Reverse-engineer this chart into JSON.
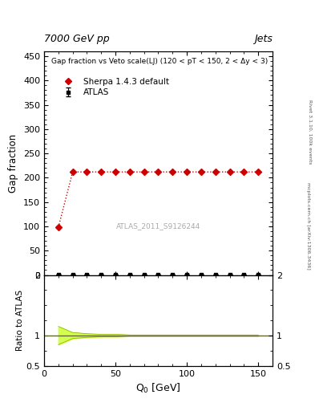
{
  "title_left": "7000 GeV pp",
  "title_right": "Jets",
  "plot_title": "Gap fraction vs Veto scale(LJ) (120 < pT < 150, 2 < Δy < 3)",
  "xlabel": "Q$_0$ [GeV]",
  "ylabel_main": "Gap fraction",
  "ylabel_ratio": "Ratio to ATLAS",
  "watermark": "ATLAS_2011_S9126244",
  "right_label": "Rivet 3.1.10, 100k events",
  "right_label2": "mcplots.cern.ch [arXiv:1306.3436]",
  "xlim": [
    0,
    160
  ],
  "ylim_main": [
    0,
    460
  ],
  "ylim_ratio": [
    0.5,
    2.0
  ],
  "atlas_x": [
    10,
    20,
    30,
    40,
    50,
    60,
    70,
    80,
    90,
    100,
    110,
    120,
    130,
    140,
    150
  ],
  "atlas_y": [
    1,
    1,
    1,
    1,
    1,
    1,
    1,
    1,
    1,
    1,
    1,
    1,
    1,
    1,
    1
  ],
  "atlas_yerr": [
    0.5,
    0.3,
    0.3,
    0.2,
    0.2,
    0.2,
    0.2,
    0.2,
    0.2,
    0.2,
    0.2,
    0.2,
    0.2,
    0.2,
    0.3
  ],
  "sherpa_x": [
    10,
    20,
    30,
    40,
    50,
    60,
    70,
    80,
    90,
    100,
    110,
    120,
    130,
    140,
    150
  ],
  "sherpa_y": [
    98,
    212,
    212,
    212,
    212,
    212,
    212,
    212,
    212,
    212,
    212,
    212,
    212,
    212,
    212
  ],
  "ratio_x": [
    10,
    20,
    30,
    40,
    50,
    60,
    70,
    80,
    90,
    100,
    110,
    120,
    130,
    140,
    150
  ],
  "ratio_y": [
    1.0,
    1.0,
    1.0,
    1.0,
    1.0,
    1.0,
    1.0,
    1.0,
    1.0,
    1.0,
    1.0,
    1.0,
    1.0,
    1.0,
    1.0
  ],
  "ratio_band_upper": [
    1.15,
    1.05,
    1.03,
    1.02,
    1.02,
    1.01,
    1.01,
    1.01,
    1.01,
    1.01,
    1.01,
    1.01,
    1.01,
    1.01,
    1.01
  ],
  "ratio_band_lower": [
    0.85,
    0.95,
    0.97,
    0.98,
    0.98,
    0.99,
    0.99,
    0.99,
    0.99,
    0.99,
    0.99,
    0.99,
    0.99,
    0.99,
    0.99
  ],
  "atlas_color": "#000000",
  "sherpa_color": "#cc0000",
  "ratio_line_color": "#666633",
  "band_fill_color": "#ccff33",
  "band_edge_color": "#88aa00",
  "background_color": "#ffffff",
  "yticks_main": [
    0,
    50,
    100,
    150,
    200,
    250,
    300,
    350,
    400,
    450
  ],
  "xticks": [
    0,
    50,
    100,
    150
  ]
}
